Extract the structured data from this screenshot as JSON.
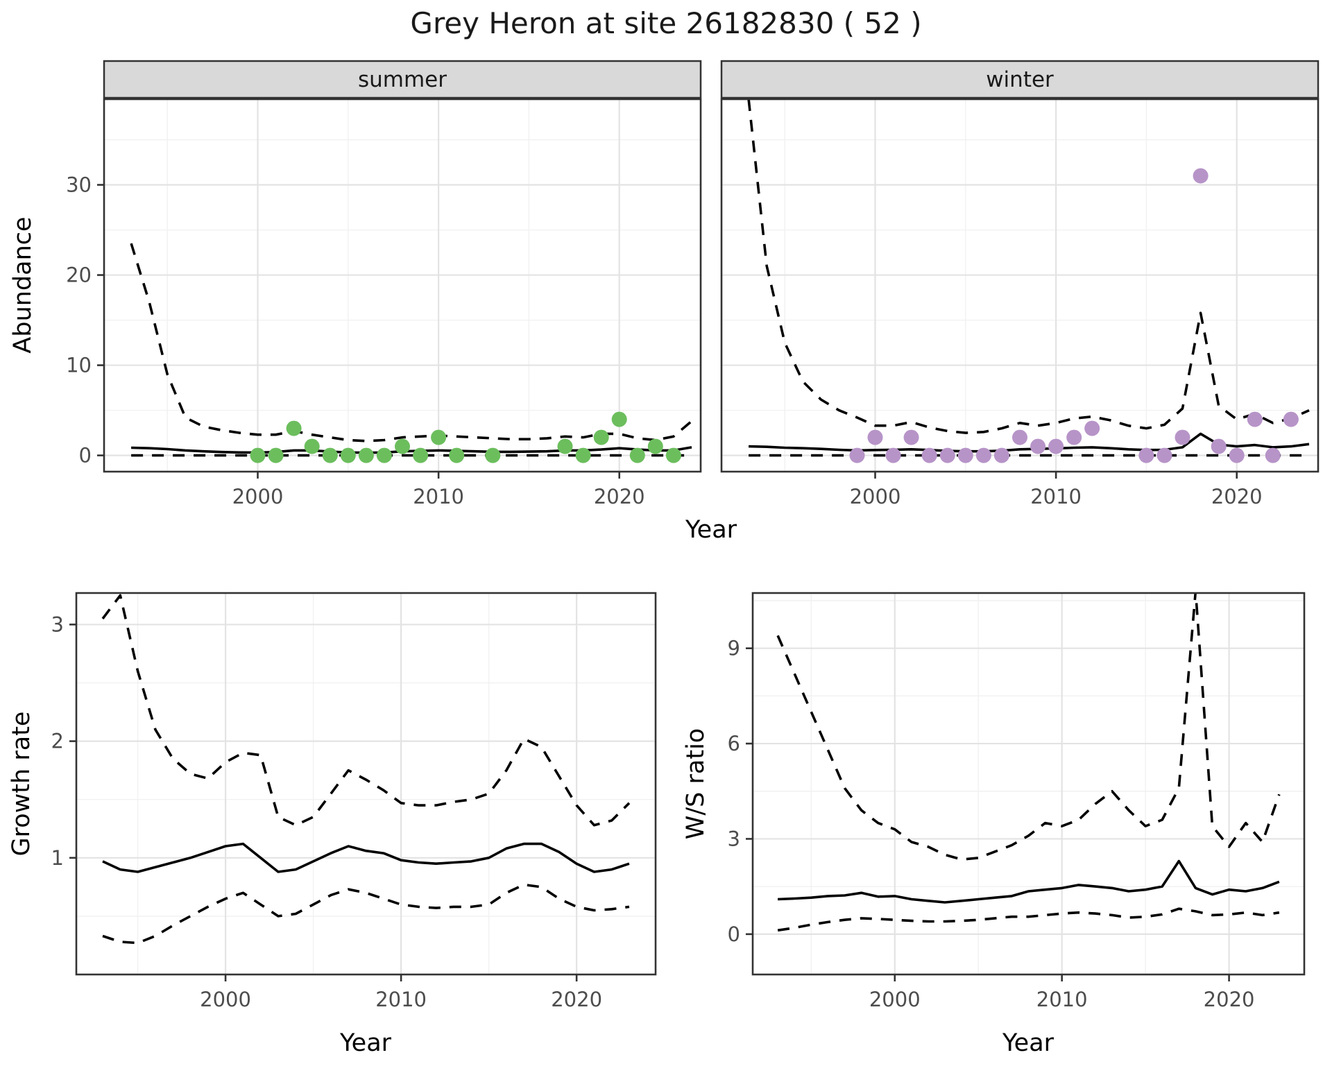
{
  "title": "Grey Heron at site 26182830 ( 52 )",
  "facets": [
    {
      "label": "summer"
    },
    {
      "label": "winter"
    }
  ],
  "axis_titles": {
    "year": "Year",
    "abundance": "Abundance",
    "growth": "Growth rate",
    "ws": "W/S ratio"
  },
  "colors": {
    "summer_point": "#6CBE5D",
    "winter_point": "#B794C8",
    "line": "#000000",
    "strip_bg": "#D9D9D9",
    "panel_border": "#333333",
    "grid_major": "#E3E3E3",
    "grid_minor": "#F1F1F1",
    "tick_label": "#4D4D4D",
    "title_text": "#1A1A1A"
  },
  "chart_data": [
    {
      "id": "abundance-summer",
      "type": "line",
      "facet": "summer",
      "ylabel": "Abundance",
      "xlim": [
        1991.5,
        2024.5
      ],
      "ylim": [
        -1.8,
        39.5
      ],
      "xticks": [
        2000,
        2010,
        2020
      ],
      "yticks": [
        0,
        10,
        20,
        30
      ],
      "xminor": [
        1995,
        2005,
        2015
      ],
      "yminor": [
        5,
        15,
        25,
        35
      ],
      "show_y_labels": true,
      "x": [
        1993,
        1994,
        1995,
        1996,
        1997,
        1998,
        1999,
        2000,
        2001,
        2002,
        2003,
        2004,
        2005,
        2006,
        2007,
        2008,
        2009,
        2010,
        2011,
        2012,
        2013,
        2014,
        2015,
        2016,
        2017,
        2018,
        2019,
        2020,
        2021,
        2022,
        2023,
        2024
      ],
      "series": [
        {
          "name": "mean",
          "style": "solid",
          "values": [
            0.85,
            0.8,
            0.7,
            0.55,
            0.45,
            0.38,
            0.33,
            0.32,
            0.38,
            0.55,
            0.55,
            0.42,
            0.32,
            0.3,
            0.32,
            0.45,
            0.5,
            0.55,
            0.5,
            0.45,
            0.4,
            0.4,
            0.42,
            0.45,
            0.55,
            0.55,
            0.65,
            0.8,
            0.65,
            0.55,
            0.55,
            0.9
          ]
        },
        {
          "name": "upper-ci",
          "style": "dashed",
          "values": [
            23.5,
            17,
            9,
            4.2,
            3.2,
            2.8,
            2.5,
            2.3,
            2.3,
            2.7,
            2.3,
            2.0,
            1.7,
            1.6,
            1.7,
            2.0,
            2.1,
            2.2,
            2.1,
            2.0,
            1.9,
            1.8,
            1.8,
            1.9,
            2.1,
            2.0,
            2.4,
            2.4,
            1.9,
            1.7,
            2.1,
            3.8
          ]
        },
        {
          "name": "lower-ci",
          "style": "dashed",
          "values": [
            0,
            0,
            0,
            0,
            0,
            0,
            0,
            0,
            0,
            0,
            0,
            0,
            0,
            0,
            0,
            0,
            0,
            0,
            0,
            0,
            0,
            0,
            0,
            0,
            0,
            0,
            0,
            0,
            0,
            0,
            0,
            0
          ]
        }
      ],
      "points": {
        "color": "#6CBE5D",
        "data": [
          [
            2000,
            0
          ],
          [
            2001,
            0
          ],
          [
            2002,
            3
          ],
          [
            2003,
            1
          ],
          [
            2004,
            0
          ],
          [
            2005,
            0
          ],
          [
            2006,
            0
          ],
          [
            2007,
            0
          ],
          [
            2008,
            1
          ],
          [
            2009,
            0
          ],
          [
            2010,
            2
          ],
          [
            2011,
            0
          ],
          [
            2013,
            0
          ],
          [
            2017,
            1
          ],
          [
            2018,
            0
          ],
          [
            2019,
            2
          ],
          [
            2020,
            4
          ],
          [
            2021,
            0
          ],
          [
            2022,
            1
          ],
          [
            2023,
            0
          ]
        ]
      }
    },
    {
      "id": "abundance-winter",
      "type": "line",
      "facet": "winter",
      "ylabel": "Abundance",
      "xlim": [
        1991.5,
        2024.5
      ],
      "ylim": [
        -1.8,
        39.5
      ],
      "xticks": [
        2000,
        2010,
        2020
      ],
      "yticks": [
        0,
        10,
        20,
        30
      ],
      "xminor": [
        1995,
        2005,
        2015
      ],
      "yminor": [
        5,
        15,
        25,
        35
      ],
      "show_y_labels": false,
      "x": [
        1993,
        1994,
        1995,
        1996,
        1997,
        1998,
        1999,
        2000,
        2001,
        2002,
        2003,
        2004,
        2005,
        2006,
        2007,
        2008,
        2009,
        2010,
        2011,
        2012,
        2013,
        2014,
        2015,
        2016,
        2017,
        2018,
        2019,
        2020,
        2021,
        2022,
        2023,
        2024
      ],
      "series": [
        {
          "name": "mean",
          "style": "solid",
          "values": [
            1.0,
            0.95,
            0.85,
            0.8,
            0.72,
            0.62,
            0.55,
            0.6,
            0.62,
            0.68,
            0.6,
            0.5,
            0.45,
            0.45,
            0.52,
            0.68,
            0.72,
            0.78,
            0.85,
            0.9,
            0.8,
            0.68,
            0.6,
            0.62,
            0.9,
            2.4,
            1.2,
            1.0,
            1.15,
            0.9,
            1.0,
            1.25
          ]
        },
        {
          "name": "upper-ci",
          "style": "dashed",
          "values": [
            39.5,
            21,
            12.5,
            8.2,
            6.2,
            5.0,
            4.2,
            3.3,
            3.3,
            3.7,
            3.1,
            2.7,
            2.5,
            2.6,
            3.0,
            3.6,
            3.3,
            3.6,
            4.1,
            4.3,
            3.9,
            3.3,
            3.0,
            3.4,
            5.2,
            15.8,
            5.5,
            4.0,
            4.6,
            3.6,
            4.1,
            5.0
          ]
        },
        {
          "name": "lower-ci",
          "style": "dashed",
          "values": [
            0,
            0,
            0,
            0,
            0,
            0,
            0,
            0,
            0,
            0,
            0,
            0,
            0,
            0,
            0,
            0,
            0,
            0,
            0,
            0,
            0,
            0,
            0,
            0,
            0,
            0,
            0,
            0,
            0,
            0,
            0,
            0
          ]
        }
      ],
      "points": {
        "color": "#B794C8",
        "data": [
          [
            1999,
            0
          ],
          [
            2000,
            2
          ],
          [
            2001,
            0
          ],
          [
            2002,
            2
          ],
          [
            2003,
            0
          ],
          [
            2004,
            0
          ],
          [
            2005,
            0
          ],
          [
            2006,
            0
          ],
          [
            2007,
            0
          ],
          [
            2008,
            2
          ],
          [
            2009,
            1
          ],
          [
            2010,
            1
          ],
          [
            2011,
            2
          ],
          [
            2012,
            3
          ],
          [
            2015,
            0
          ],
          [
            2016,
            0
          ],
          [
            2017,
            2
          ],
          [
            2018,
            31
          ],
          [
            2019,
            1
          ],
          [
            2020,
            0
          ],
          [
            2021,
            4
          ],
          [
            2022,
            0
          ],
          [
            2023,
            4
          ]
        ]
      }
    },
    {
      "id": "growth-rate",
      "type": "line",
      "ylabel": "Growth rate",
      "xlabel": "Year",
      "xlim": [
        1991.5,
        2024.5
      ],
      "ylim": [
        0.0,
        3.27
      ],
      "xticks": [
        2000,
        2010,
        2020
      ],
      "yticks": [
        1,
        2,
        3
      ],
      "xminor": [
        1995,
        2005,
        2015
      ],
      "yminor": [
        0.5,
        1.5,
        2.5
      ],
      "show_y_labels": true,
      "x": [
        1993,
        1994,
        1995,
        1996,
        1997,
        1998,
        1999,
        2000,
        2001,
        2002,
        2003,
        2004,
        2005,
        2006,
        2007,
        2008,
        2009,
        2010,
        2011,
        2012,
        2013,
        2014,
        2015,
        2016,
        2017,
        2018,
        2019,
        2020,
        2021,
        2022,
        2023
      ],
      "series": [
        {
          "name": "mean",
          "style": "solid",
          "values": [
            0.97,
            0.9,
            0.88,
            0.92,
            0.96,
            1.0,
            1.05,
            1.1,
            1.12,
            1.0,
            0.88,
            0.9,
            0.97,
            1.04,
            1.1,
            1.06,
            1.04,
            0.98,
            0.96,
            0.95,
            0.96,
            0.97,
            1.0,
            1.08,
            1.12,
            1.12,
            1.05,
            0.95,
            0.88,
            0.9,
            0.95
          ]
        },
        {
          "name": "upper-ci",
          "style": "dashed",
          "values": [
            3.05,
            3.25,
            2.6,
            2.1,
            1.85,
            1.72,
            1.68,
            1.82,
            1.9,
            1.88,
            1.35,
            1.28,
            1.35,
            1.55,
            1.75,
            1.67,
            1.58,
            1.47,
            1.45,
            1.45,
            1.48,
            1.5,
            1.55,
            1.75,
            2.02,
            1.95,
            1.7,
            1.45,
            1.28,
            1.32,
            1.47
          ]
        },
        {
          "name": "lower-ci",
          "style": "dashed",
          "values": [
            0.33,
            0.28,
            0.27,
            0.33,
            0.42,
            0.5,
            0.58,
            0.65,
            0.7,
            0.6,
            0.5,
            0.52,
            0.6,
            0.68,
            0.73,
            0.7,
            0.65,
            0.6,
            0.58,
            0.57,
            0.58,
            0.58,
            0.6,
            0.7,
            0.77,
            0.75,
            0.65,
            0.58,
            0.55,
            0.56,
            0.58
          ]
        }
      ]
    },
    {
      "id": "ws-ratio",
      "type": "line",
      "ylabel": "W/S ratio",
      "xlabel": "Year",
      "xlim": [
        1991.5,
        2024.5
      ],
      "ylim": [
        -1.27,
        10.74
      ],
      "xticks": [
        2000,
        2010,
        2020
      ],
      "yticks": [
        0,
        3,
        6,
        9
      ],
      "xminor": [
        1995,
        2005,
        2015
      ],
      "yminor": [
        1.5,
        4.5,
        7.5,
        10.5
      ],
      "show_y_labels": true,
      "x": [
        1993,
        1994,
        1995,
        1996,
        1997,
        1998,
        1999,
        2000,
        2001,
        2002,
        2003,
        2004,
        2005,
        2006,
        2007,
        2008,
        2009,
        2010,
        2011,
        2012,
        2013,
        2014,
        2015,
        2016,
        2017,
        2018,
        2019,
        2020,
        2021,
        2022,
        2023
      ],
      "series": [
        {
          "name": "mean",
          "style": "solid",
          "values": [
            1.1,
            1.12,
            1.15,
            1.2,
            1.22,
            1.3,
            1.18,
            1.2,
            1.1,
            1.05,
            1.0,
            1.05,
            1.1,
            1.15,
            1.2,
            1.35,
            1.4,
            1.45,
            1.55,
            1.5,
            1.45,
            1.35,
            1.4,
            1.5,
            2.3,
            1.45,
            1.25,
            1.4,
            1.35,
            1.45,
            1.65
          ]
        },
        {
          "name": "upper-ci",
          "style": "dashed",
          "values": [
            9.4,
            8.2,
            7.0,
            5.8,
            4.6,
            3.9,
            3.5,
            3.3,
            2.9,
            2.75,
            2.5,
            2.35,
            2.4,
            2.6,
            2.8,
            3.1,
            3.5,
            3.4,
            3.6,
            4.1,
            4.5,
            3.9,
            3.4,
            3.6,
            4.6,
            10.8,
            3.4,
            2.75,
            3.5,
            2.9,
            4.4
          ]
        },
        {
          "name": "lower-ci",
          "style": "dashed",
          "values": [
            0.12,
            0.2,
            0.3,
            0.38,
            0.45,
            0.5,
            0.48,
            0.45,
            0.42,
            0.4,
            0.4,
            0.42,
            0.45,
            0.5,
            0.55,
            0.55,
            0.6,
            0.65,
            0.68,
            0.65,
            0.6,
            0.52,
            0.55,
            0.62,
            0.8,
            0.72,
            0.6,
            0.62,
            0.68,
            0.6,
            0.68
          ]
        }
      ]
    }
  ]
}
